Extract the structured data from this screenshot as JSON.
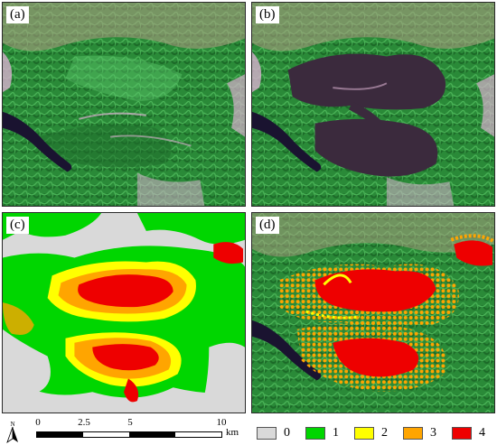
{
  "panels": [
    {
      "id": "a",
      "label": "(a)"
    },
    {
      "id": "b",
      "label": "(b)"
    },
    {
      "id": "c",
      "label": "(c)"
    },
    {
      "id": "d",
      "label": "(d)"
    }
  ],
  "scale_bar": {
    "ticks": [
      "0",
      "2.5",
      "5",
      "10"
    ],
    "unit": "km"
  },
  "north_arrow": {
    "icon": "north-arrow-icon"
  },
  "legend": [
    {
      "label": "0",
      "color": "#d9d9d9"
    },
    {
      "label": "1",
      "color": "#00d600"
    },
    {
      "label": "2",
      "color": "#ffff00"
    },
    {
      "label": "3",
      "color": "#ffa500"
    },
    {
      "label": "4",
      "color": "#ee0000"
    }
  ],
  "colors": {
    "forest_dark": "#1f6d2b",
    "forest_mid": "#2f9a3c",
    "forest_light": "#5cc56a",
    "burn_scar": "#3b2a3d",
    "water": "#1a1330",
    "urban_pink": "#d8b0cf",
    "bare_brown": "#b69e86"
  }
}
